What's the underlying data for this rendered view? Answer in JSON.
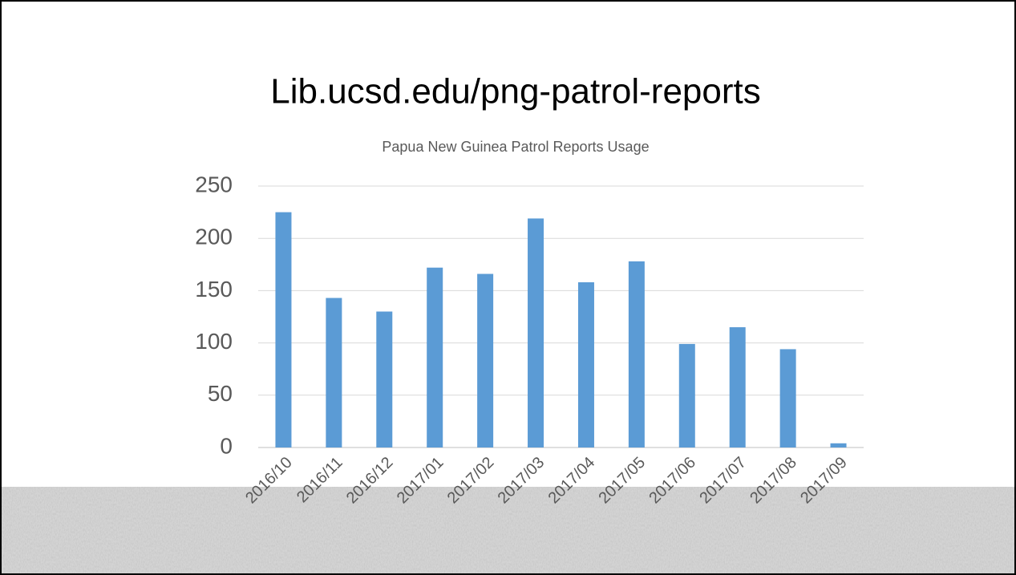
{
  "page_title": "Lib.ucsd.edu/png-patrol-reports",
  "chart_data": {
    "type": "bar",
    "title": "Papua New Guinea Patrol Reports Usage",
    "categories": [
      "2016/10",
      "2016/11",
      "2016/12",
      "2017/01",
      "2017/02",
      "2017/03",
      "2017/04",
      "2017/05",
      "2017/06",
      "2017/07",
      "2017/08",
      "2017/09"
    ],
    "values": [
      225,
      143,
      130,
      172,
      166,
      219,
      158,
      178,
      99,
      115,
      94,
      4
    ],
    "color": "#5b9bd5",
    "ylim": [
      0,
      250
    ],
    "yticks": [
      0,
      50,
      100,
      150,
      200,
      250
    ],
    "grid": true
  }
}
